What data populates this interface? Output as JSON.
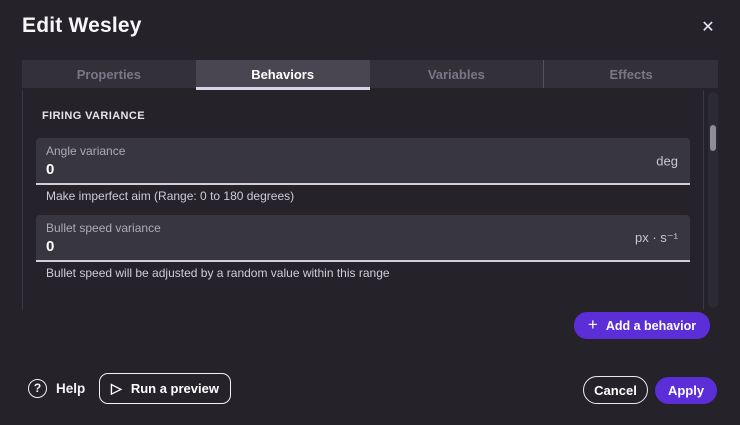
{
  "dialog": {
    "title": "Edit Wesley"
  },
  "icons": {
    "close": "✕",
    "plus": "+",
    "play": "▷",
    "help": "?"
  },
  "tabs": [
    {
      "label": "Properties",
      "active": false
    },
    {
      "label": "Behaviors",
      "active": true
    },
    {
      "label": "Variables",
      "active": false
    },
    {
      "label": "Effects",
      "active": false
    }
  ],
  "section": {
    "heading": "FIRING VARIANCE"
  },
  "fields": [
    {
      "label": "Angle variance",
      "value": "0",
      "unit": "deg",
      "hint": "Make imperfect aim (Range: 0 to 180 degrees)"
    },
    {
      "label": "Bullet speed variance",
      "value": "0",
      "unit": "px · s⁻¹",
      "hint": "Bullet speed will be adjusted by a random value within this range"
    }
  ],
  "actions": {
    "add_behavior": "Add a behavior",
    "help": "Help",
    "run_preview": "Run a preview",
    "cancel": "Cancel",
    "apply": "Apply"
  },
  "colors": {
    "accent_purple": "#5b2ed8",
    "dialog_background": "#252329",
    "field_background": "#38363f",
    "tab_underline": "#d9d4ea"
  }
}
